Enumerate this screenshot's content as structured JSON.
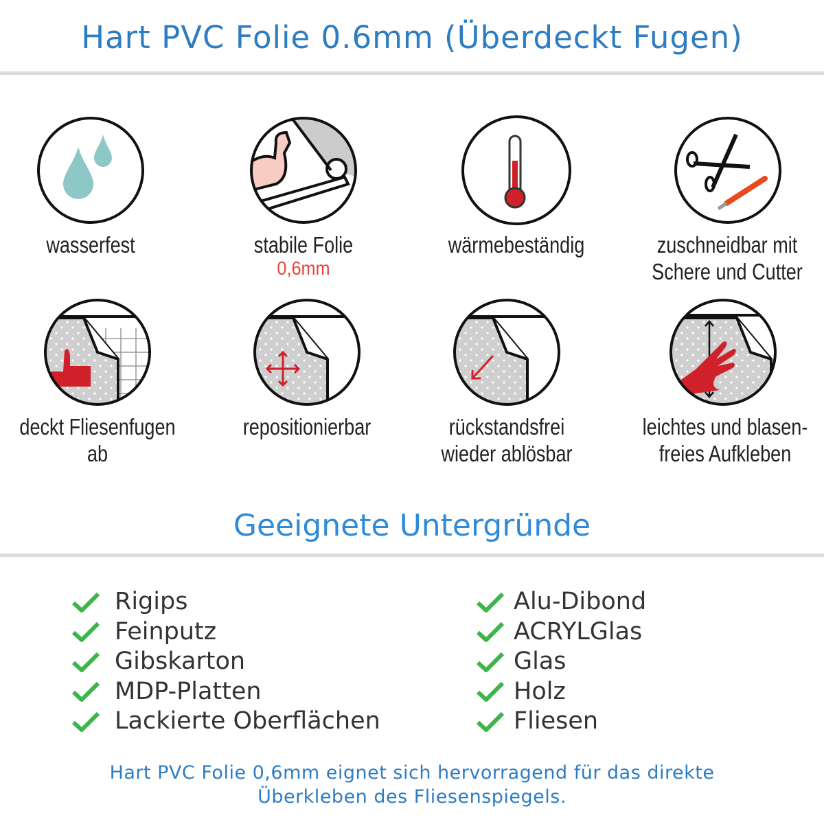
{
  "header": {
    "title": "Hart PVC Folie 0.6mm (Überdeckt Fugen)"
  },
  "features": [
    {
      "label": "wasserfest",
      "icon": "water-drops-icon"
    },
    {
      "label": "stabile Folie",
      "sub": "0,6mm",
      "icon": "strong-arm-icon"
    },
    {
      "label": "wärmebeständig",
      "icon": "thermometer-icon"
    },
    {
      "label": "zuschneidbar mit",
      "label2": "Schere und Cutter",
      "icon": "scissors-cutter-icon"
    },
    {
      "label": "deckt Fliesenfugen ab",
      "icon": "thumbs-up-tiles-icon"
    },
    {
      "label": "repositionierbar",
      "icon": "move-arrows-icon"
    },
    {
      "label": "rückstandsfrei",
      "label2": "wieder ablösbar",
      "icon": "peel-arrow-icon"
    },
    {
      "label": "leichtes und blasen-",
      "label2": "freies Aufkleben",
      "icon": "hand-smooth-icon"
    }
  ],
  "surfaces": {
    "title": "Geeignete Untergründe",
    "left": [
      "Rigips",
      "Feinputz",
      "Gibskarton",
      "MDP-Platten",
      "Lackierte Oberflächen"
    ],
    "right": [
      "Alu-Dibond",
      "ACRYLGlas",
      "Glas",
      "Holz",
      "Fliesen"
    ]
  },
  "footer": {
    "line1": "Hart PVC Folie 0,6mm eignet sich hervorragend für das direkte",
    "line2": "Überkleben des Fliesenspiegels."
  },
  "colors": {
    "title": "#2e7cc1",
    "check": "#3cb54a",
    "accent_red": "#e8433a"
  }
}
